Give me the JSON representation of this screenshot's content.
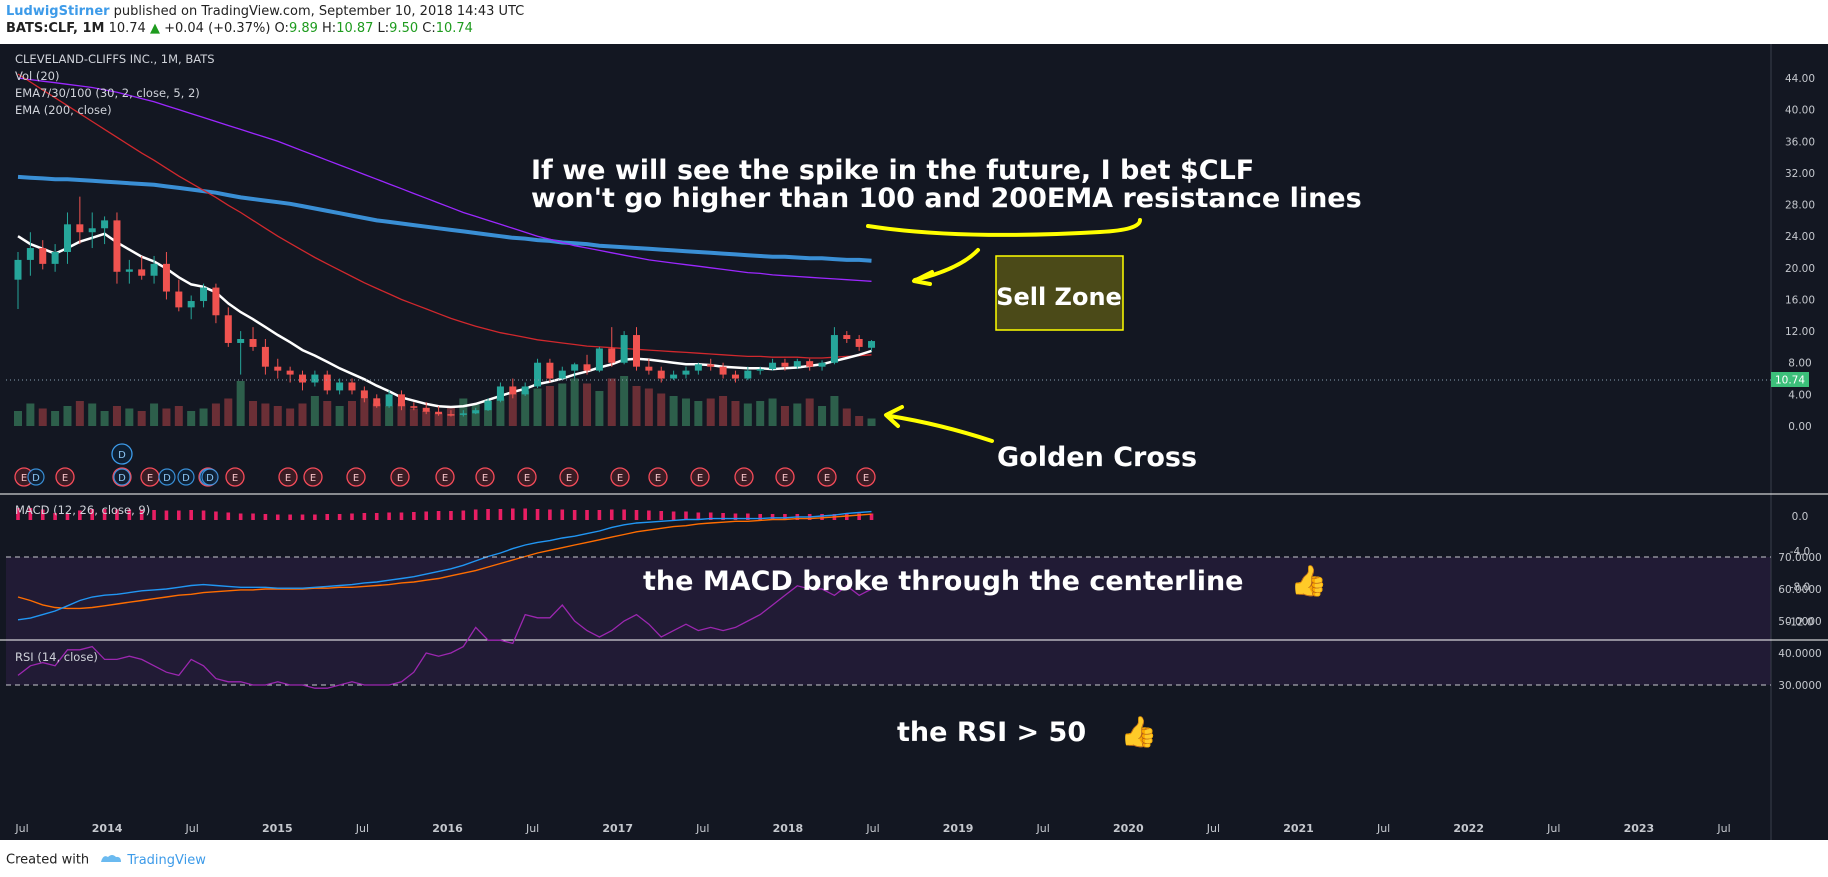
{
  "header": {
    "author": "LudwigStirner",
    "published": " published on TradingView.com, September 10, 2018 14:43 UTC",
    "symbol": "BATS:CLF, 1M",
    "last": "10.74",
    "change_arrow": "▲",
    "change": "+0.04 (+0.37%)",
    "o_label": "O:",
    "o_val": "9.89",
    "h_label": "H:",
    "h_val": "10.87",
    "l_label": "L:",
    "l_val": "9.50",
    "c_label": "C:",
    "c_val": "10.74"
  },
  "footer": {
    "created_with": "Created with",
    "brand": "TradingView"
  },
  "colors": {
    "background": "#131722",
    "rsi_band": "#211b35",
    "up": "#26a69a",
    "down": "#ef5350",
    "ema_fast": "#ffffff",
    "ema_mid": "#d1282d",
    "ema_slow": "#9c27ff",
    "ema200": "#3a8fd5",
    "macd": "#2196f3",
    "signal": "#ff6d00",
    "hist": "#e91e63",
    "rsi": "#9c27b0",
    "annotation": "#ffff00"
  },
  "chart_data": {
    "type": "candlestick",
    "indicators": [
      "CLEVELAND-CLIFFS INC., 1M, BATS",
      "Vol (20)",
      "EMA7/30/100 (30, 2, close, 5, 2)",
      "EMA (200, close)"
    ],
    "price_ylim": [
      0,
      46
    ],
    "price_ticks": [
      "44.00",
      "40.00",
      "36.00",
      "32.00",
      "28.00",
      "24.00",
      "20.00",
      "16.00",
      "12.00",
      "8.00",
      "4.00",
      "0.00"
    ],
    "last_price_label": "10.74",
    "x_labels": [
      "Jul",
      "2014",
      "Jul",
      "2015",
      "Jul",
      "2016",
      "Jul",
      "2017",
      "Jul",
      "2018",
      "Jul",
      "2019",
      "Jul",
      "2020",
      "Jul",
      "2021",
      "Jul",
      "2022",
      "Jul",
      "2023",
      "Jul"
    ],
    "candles_start": "2013-05",
    "candles": [
      [
        18.5,
        22.0,
        14.8,
        21.0
      ],
      [
        21.0,
        24.5,
        19.0,
        22.5
      ],
      [
        22.5,
        23.5,
        19.8,
        20.5
      ],
      [
        20.5,
        23.0,
        19.5,
        22.0
      ],
      [
        22.0,
        27.0,
        20.5,
        25.5
      ],
      [
        25.5,
        29.0,
        23.0,
        24.5
      ],
      [
        24.5,
        27.0,
        22.5,
        25.0
      ],
      [
        25.0,
        26.5,
        23.0,
        26.0
      ],
      [
        26.0,
        27.0,
        18.0,
        19.5
      ],
      [
        19.5,
        21.0,
        18.0,
        19.8
      ],
      [
        19.8,
        21.5,
        18.5,
        19.0
      ],
      [
        19.0,
        21.5,
        18.0,
        20.5
      ],
      [
        20.5,
        22.0,
        16.0,
        17.0
      ],
      [
        17.0,
        18.5,
        14.5,
        15.0
      ],
      [
        15.0,
        16.5,
        13.5,
        15.8
      ],
      [
        15.8,
        18.0,
        15.0,
        17.5
      ],
      [
        17.5,
        18.0,
        13.0,
        14.0
      ],
      [
        14.0,
        15.0,
        10.0,
        10.5
      ],
      [
        10.5,
        12.0,
        6.5,
        11.0
      ],
      [
        11.0,
        12.5,
        9.5,
        10.0
      ],
      [
        10.0,
        11.0,
        6.5,
        7.5
      ],
      [
        7.5,
        8.5,
        6.0,
        7.0
      ],
      [
        7.0,
        7.5,
        5.5,
        6.5
      ],
      [
        6.5,
        7.0,
        4.5,
        5.5
      ],
      [
        5.5,
        7.0,
        5.0,
        6.5
      ],
      [
        6.5,
        7.0,
        4.0,
        4.5
      ],
      [
        4.5,
        6.0,
        4.0,
        5.5
      ],
      [
        5.5,
        6.0,
        4.0,
        4.5
      ],
      [
        4.5,
        5.0,
        3.0,
        3.5
      ],
      [
        3.5,
        4.0,
        2.3,
        2.5
      ],
      [
        2.5,
        4.5,
        2.3,
        4.0
      ],
      [
        4.0,
        4.5,
        2.0,
        2.5
      ],
      [
        2.5,
        3.0,
        2.0,
        2.3
      ],
      [
        2.3,
        3.0,
        1.5,
        1.8
      ],
      [
        1.8,
        2.5,
        1.3,
        1.5
      ],
      [
        1.5,
        2.0,
        1.2,
        1.4
      ],
      [
        1.4,
        2.0,
        1.2,
        1.6
      ],
      [
        1.6,
        2.3,
        1.5,
        2.0
      ],
      [
        2.0,
        3.5,
        1.9,
        3.2
      ],
      [
        3.2,
        5.5,
        3.0,
        5.0
      ],
      [
        5.0,
        6.0,
        3.5,
        4.0
      ],
      [
        4.0,
        5.5,
        3.8,
        5.0
      ],
      [
        5.0,
        8.5,
        4.8,
        8.0
      ],
      [
        8.0,
        8.5,
        5.5,
        6.0
      ],
      [
        6.0,
        7.5,
        5.8,
        7.0
      ],
      [
        7.0,
        8.0,
        6.0,
        7.8
      ],
      [
        7.8,
        9.0,
        6.5,
        7.0
      ],
      [
        7.0,
        10.0,
        6.8,
        9.8
      ],
      [
        9.8,
        12.5,
        7.5,
        8.0
      ],
      [
        8.0,
        12.0,
        7.8,
        11.5
      ],
      [
        11.5,
        12.5,
        7.0,
        7.5
      ],
      [
        7.5,
        8.5,
        6.5,
        7.0
      ],
      [
        7.0,
        7.5,
        5.5,
        6.0
      ],
      [
        6.0,
        7.0,
        5.8,
        6.5
      ],
      [
        6.5,
        7.5,
        6.0,
        7.0
      ],
      [
        7.0,
        8.0,
        6.5,
        7.8
      ],
      [
        7.8,
        8.5,
        7.0,
        7.5
      ],
      [
        7.5,
        8.0,
        6.0,
        6.5
      ],
      [
        6.5,
        7.0,
        5.5,
        6.0
      ],
      [
        6.0,
        7.5,
        5.8,
        7.0
      ],
      [
        7.0,
        7.5,
        6.5,
        7.2
      ],
      [
        7.2,
        8.5,
        7.0,
        8.0
      ],
      [
        8.0,
        8.5,
        7.0,
        7.5
      ],
      [
        7.5,
        8.5,
        7.2,
        8.2
      ],
      [
        8.2,
        8.5,
        7.0,
        7.5
      ],
      [
        7.5,
        8.3,
        7.0,
        8.0
      ],
      [
        8.0,
        12.5,
        7.8,
        11.5
      ],
      [
        11.5,
        12.0,
        10.5,
        11.0
      ],
      [
        11.0,
        11.5,
        9.5,
        10.0
      ],
      [
        9.89,
        10.87,
        9.5,
        10.74
      ]
    ],
    "ema_fast": [
      24.0,
      23.0,
      22.4,
      21.8,
      22.5,
      23.3,
      23.8,
      24.3,
      23.2,
      22.3,
      21.4,
      20.8,
      19.9,
      18.8,
      17.9,
      17.6,
      16.9,
      15.5,
      14.4,
      13.5,
      12.5,
      11.5,
      10.6,
      9.6,
      8.9,
      8.1,
      7.3,
      6.6,
      5.9,
      5.1,
      4.4,
      3.6,
      3.2,
      2.8,
      2.5,
      2.4,
      2.5,
      2.8,
      3.3,
      3.8,
      4.3,
      4.7,
      5.3,
      5.6,
      6.0,
      6.5,
      6.9,
      7.4,
      7.8,
      8.4,
      8.5,
      8.4,
      8.2,
      8.0,
      7.8,
      7.8,
      7.7,
      7.5,
      7.4,
      7.3,
      7.3,
      7.2,
      7.3,
      7.4,
      7.6,
      7.8,
      8.2,
      8.6,
      9.0,
      9.5
    ],
    "ema_mid": [
      44.5,
      43.5,
      42.5,
      41.5,
      40.5,
      39.5,
      38.5,
      37.5,
      36.5,
      35.5,
      34.5,
      33.6,
      32.6,
      31.6,
      30.7,
      29.8,
      28.9,
      27.9,
      27.0,
      26.0,
      25.0,
      24.0,
      23.1,
      22.2,
      21.3,
      20.5,
      19.7,
      18.9,
      18.1,
      17.4,
      16.7,
      16.0,
      15.4,
      14.8,
      14.2,
      13.6,
      13.1,
      12.6,
      12.2,
      11.8,
      11.5,
      11.2,
      10.9,
      10.7,
      10.5,
      10.3,
      10.1,
      10.0,
      9.9,
      9.8,
      9.7,
      9.6,
      9.5,
      9.4,
      9.3,
      9.2,
      9.1,
      9.0,
      8.9,
      8.8,
      8.8,
      8.7,
      8.7,
      8.7,
      8.6,
      8.6,
      8.7,
      8.8,
      8.9,
      9.0
    ],
    "ema_slow": [
      44.0,
      43.8,
      43.6,
      43.4,
      43.2,
      43.0,
      42.8,
      42.5,
      42.2,
      41.8,
      41.4,
      41.0,
      40.5,
      40.0,
      39.5,
      39.0,
      38.5,
      38.0,
      37.5,
      37.0,
      36.5,
      36.0,
      35.4,
      34.8,
      34.2,
      33.6,
      33.0,
      32.4,
      31.8,
      31.2,
      30.6,
      30.0,
      29.4,
      28.8,
      28.2,
      27.6,
      27.0,
      26.5,
      26.0,
      25.5,
      25.0,
      24.5,
      24.0,
      23.6,
      23.2,
      22.8,
      22.5,
      22.2,
      21.9,
      21.6,
      21.3,
      21.0,
      20.8,
      20.6,
      20.4,
      20.2,
      20.0,
      19.8,
      19.6,
      19.4,
      19.3,
      19.1,
      19.0,
      18.9,
      18.8,
      18.7,
      18.6,
      18.5,
      18.4,
      18.3
    ],
    "ema200": [
      31.5,
      31.4,
      31.3,
      31.2,
      31.2,
      31.1,
      31.0,
      30.9,
      30.8,
      30.7,
      30.6,
      30.5,
      30.3,
      30.1,
      29.9,
      29.7,
      29.5,
      29.2,
      28.9,
      28.7,
      28.5,
      28.3,
      28.1,
      27.8,
      27.5,
      27.2,
      26.9,
      26.6,
      26.3,
      26.0,
      25.8,
      25.6,
      25.4,
      25.2,
      25.0,
      24.8,
      24.6,
      24.4,
      24.2,
      24.0,
      23.8,
      23.7,
      23.5,
      23.4,
      23.2,
      23.1,
      23.0,
      22.8,
      22.7,
      22.6,
      22.5,
      22.4,
      22.3,
      22.2,
      22.1,
      22.0,
      21.9,
      21.8,
      21.7,
      21.6,
      21.5,
      21.4,
      21.4,
      21.3,
      21.2,
      21.2,
      21.1,
      21.0,
      21.0,
      20.9
    ],
    "volume": [
      0.3,
      0.45,
      0.35,
      0.3,
      0.4,
      0.5,
      0.45,
      0.3,
      0.4,
      0.35,
      0.3,
      0.45,
      0.35,
      0.4,
      0.3,
      0.35,
      0.45,
      0.55,
      0.9,
      0.5,
      0.45,
      0.4,
      0.35,
      0.45,
      0.6,
      0.5,
      0.4,
      0.5,
      0.55,
      0.45,
      0.4,
      0.45,
      0.35,
      0.3,
      0.25,
      0.4,
      0.55,
      0.45,
      0.5,
      0.55,
      0.65,
      0.7,
      0.75,
      0.8,
      0.85,
      0.95,
      0.85,
      0.7,
      0.95,
      1.0,
      0.8,
      0.75,
      0.65,
      0.6,
      0.55,
      0.5,
      0.55,
      0.6,
      0.5,
      0.45,
      0.5,
      0.55,
      0.4,
      0.45,
      0.55,
      0.4,
      0.6,
      0.35,
      0.2,
      0.15
    ],
    "event_markers": [
      "E",
      "E",
      "E",
      "E",
      "E",
      "E",
      "E",
      "E",
      "E",
      "E",
      "E",
      "E",
      "E",
      "E",
      "E",
      "E",
      "E",
      "E",
      "E",
      "E",
      "E"
    ],
    "dividend_markers": [
      "D",
      "D",
      "D",
      "D",
      "D",
      "D",
      "D"
    ],
    "macd": {
      "label": "MACD (12, 26, close, 9)",
      "ylim": [
        -13.5,
        1.0
      ],
      "ticks": [
        "0.0",
        "-4.0",
        "-8.0",
        "-12.0"
      ],
      "macd": [
        -11.8,
        -11.6,
        -11.2,
        -10.8,
        -10.2,
        -9.6,
        -9.2,
        -9.0,
        -8.9,
        -8.7,
        -8.5,
        -8.4,
        -8.3,
        -8.1,
        -7.9,
        -7.8,
        -7.9,
        -8.0,
        -8.1,
        -8.1,
        -8.1,
        -8.2,
        -8.2,
        -8.2,
        -8.1,
        -8.0,
        -7.9,
        -7.8,
        -7.6,
        -7.5,
        -7.3,
        -7.1,
        -6.9,
        -6.6,
        -6.3,
        -6.0,
        -5.6,
        -5.1,
        -4.6,
        -4.2,
        -3.7,
        -3.3,
        -3.0,
        -2.8,
        -2.5,
        -2.3,
        -2.0,
        -1.7,
        -1.3,
        -1.0,
        -0.8,
        -0.7,
        -0.6,
        -0.5,
        -0.4,
        -0.4,
        -0.3,
        -0.3,
        -0.3,
        -0.3,
        -0.3,
        -0.2,
        -0.2,
        -0.1,
        -0.1,
        0.0,
        0.1,
        0.3,
        0.4,
        0.5
      ],
      "signal": [
        -9.2,
        -9.6,
        -10.1,
        -10.4,
        -10.5,
        -10.5,
        -10.4,
        -10.2,
        -10.0,
        -9.8,
        -9.6,
        -9.4,
        -9.2,
        -9.0,
        -8.9,
        -8.7,
        -8.6,
        -8.5,
        -8.4,
        -8.4,
        -8.3,
        -8.3,
        -8.3,
        -8.3,
        -8.2,
        -8.2,
        -8.1,
        -8.1,
        -8.0,
        -7.9,
        -7.8,
        -7.6,
        -7.5,
        -7.3,
        -7.1,
        -6.8,
        -6.5,
        -6.2,
        -5.8,
        -5.4,
        -5.0,
        -4.6,
        -4.2,
        -3.9,
        -3.6,
        -3.3,
        -3.0,
        -2.7,
        -2.4,
        -2.1,
        -1.8,
        -1.6,
        -1.4,
        -1.2,
        -1.1,
        -0.9,
        -0.8,
        -0.7,
        -0.6,
        -0.6,
        -0.5,
        -0.4,
        -0.4,
        -0.3,
        -0.3,
        -0.2,
        -0.1,
        0.0,
        0.1,
        0.2
      ]
    },
    "rsi": {
      "label": "RSI (14, close)",
      "ylim": [
        26,
        72
      ],
      "ticks": [
        "70.0000",
        "60.0000",
        "50.0000",
        "40.0000",
        "30.0000"
      ],
      "band": [
        30,
        70
      ],
      "values": [
        33,
        36,
        37,
        36,
        41,
        41,
        42,
        38,
        38,
        39,
        38,
        36,
        34,
        33,
        38,
        36,
        32,
        31,
        31,
        30,
        30,
        31,
        30,
        30,
        29,
        29,
        30,
        31,
        30,
        30,
        30,
        31,
        34,
        40,
        39,
        40,
        42,
        48,
        44,
        44,
        43,
        52,
        51,
        51,
        55,
        50,
        47,
        45,
        47,
        50,
        52,
        49,
        45,
        47,
        49,
        47,
        48,
        47,
        48,
        50,
        52,
        55,
        58,
        61,
        60,
        60,
        58,
        61,
        58,
        60
      ]
    }
  },
  "annotations": {
    "resistance_line1": "If we will see the spike in the future, I bet $CLF",
    "resistance_line2": "won't go higher than 100 and 200EMA resistance lines",
    "sell_zone": "Sell Zone",
    "golden_cross": "Golden Cross",
    "macd_note": "the MACD broke through the centerline",
    "rsi_note": "the RSI > 50",
    "thumb": "👍"
  }
}
